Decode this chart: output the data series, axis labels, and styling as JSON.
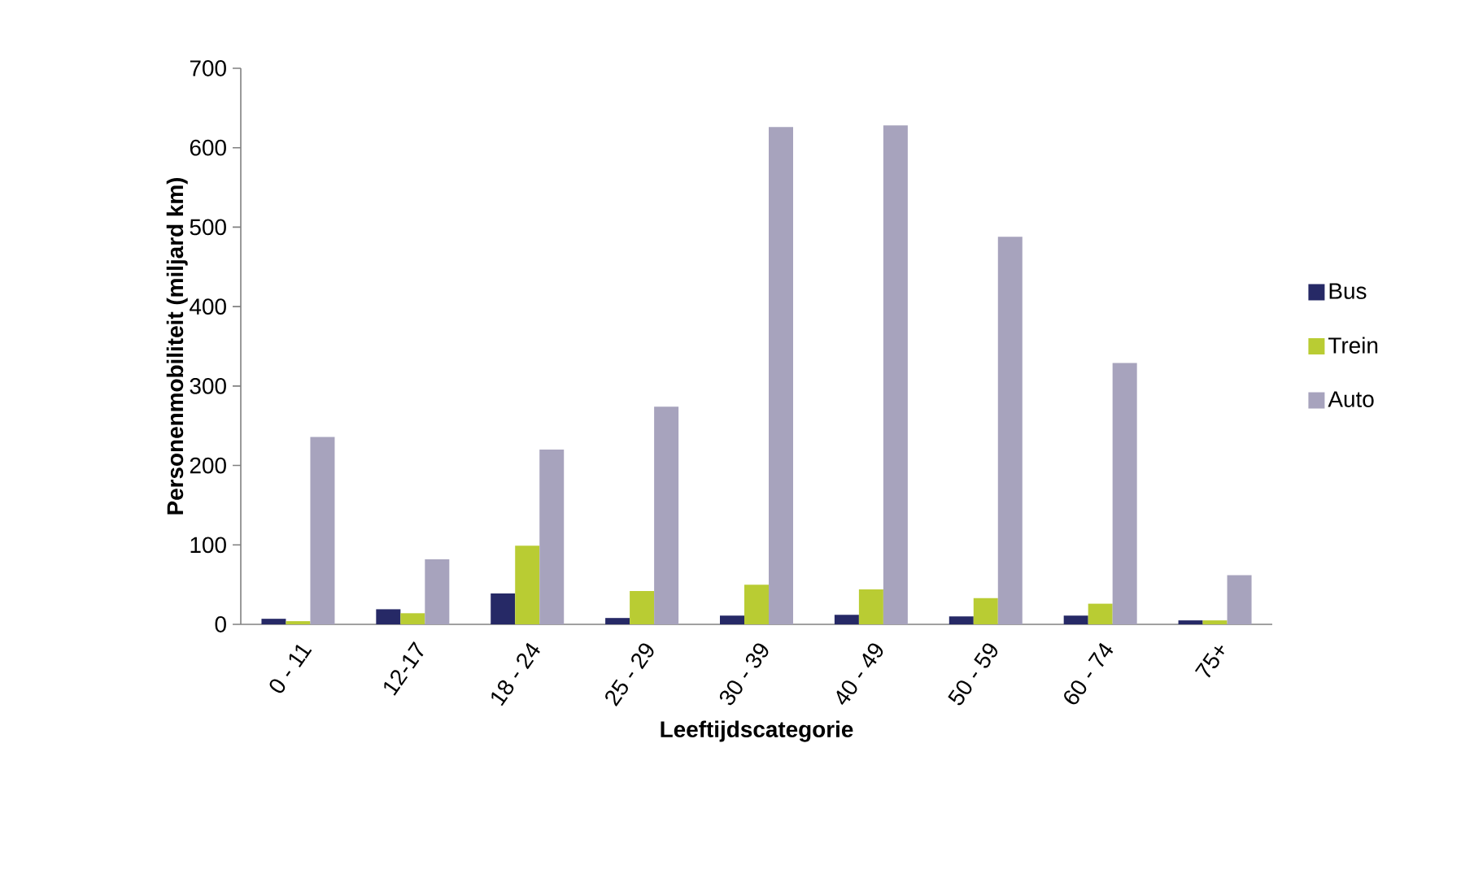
{
  "chart_data": {
    "type": "bar",
    "xlabel": "Leeftijdscategorie",
    "ylabel": "Personenmobiliteit (miljard km)",
    "categories": [
      "0 - 11",
      "12-17",
      "18 - 24",
      "25 - 29",
      "30 - 39",
      "40 - 49",
      "50 - 59",
      "60 - 74",
      "75+"
    ],
    "series": [
      {
        "name": "Bus",
        "color": "#262966",
        "values": [
          7,
          19,
          39,
          8,
          11,
          12,
          10,
          11,
          5
        ]
      },
      {
        "name": "Trein",
        "color": "#b9cc33",
        "values": [
          4,
          14,
          99,
          42,
          50,
          44,
          33,
          26,
          5
        ]
      },
      {
        "name": "Auto",
        "color": "#a7a3bd",
        "values": [
          236,
          82,
          220,
          274,
          626,
          628,
          488,
          329,
          62
        ]
      }
    ],
    "ylim": [
      0,
      700
    ],
    "yticks": [
      0,
      100,
      200,
      300,
      400,
      500,
      600,
      700
    ],
    "grid": false,
    "legend": "right"
  }
}
